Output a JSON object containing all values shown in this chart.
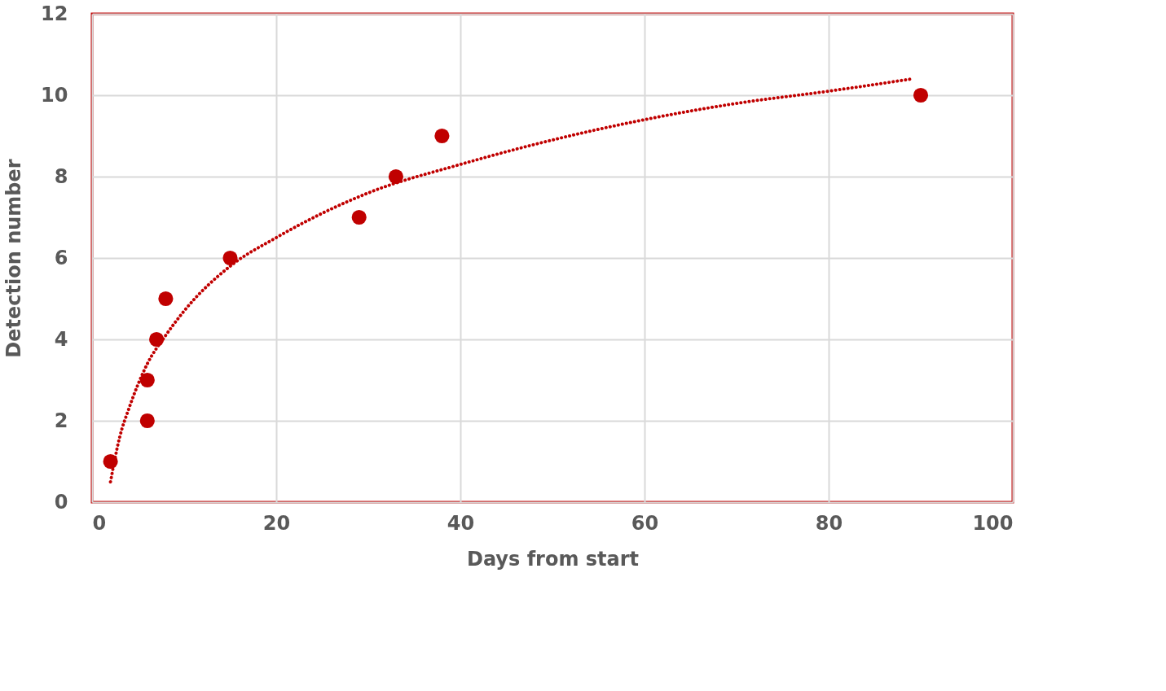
{
  "chart_data": {
    "type": "scatter",
    "xlabel": "Days from start",
    "ylabel": "Detection number",
    "series": [
      {
        "color": "#c00000",
        "marker": "circle",
        "x": [
          2,
          6,
          6,
          7,
          8,
          15,
          29,
          33,
          38,
          90
        ],
        "values": [
          1,
          2,
          3,
          4,
          5,
          6,
          7,
          8,
          9,
          10
        ]
      },
      {
        "type": "line",
        "color": "#c00000",
        "line_style": "dotted",
        "x": [
          2,
          3,
          4,
          5,
          6,
          8,
          10,
          15,
          20,
          30,
          40,
          50,
          60,
          70,
          80,
          89
        ],
        "values": [
          0.5,
          1.6,
          2.3,
          2.9,
          3.4,
          4.1,
          4.7,
          5.8,
          6.5,
          7.6,
          8.3,
          8.9,
          9.4,
          9.8,
          10.1,
          10.4
        ]
      }
    ],
    "xlim": [
      0,
      100
    ],
    "xticks": [
      0,
      20,
      40,
      60,
      80,
      100
    ],
    "ylim": [
      0,
      12
    ],
    "yticks": [
      0,
      2,
      4,
      6,
      8,
      10,
      12
    ],
    "grid": true
  }
}
